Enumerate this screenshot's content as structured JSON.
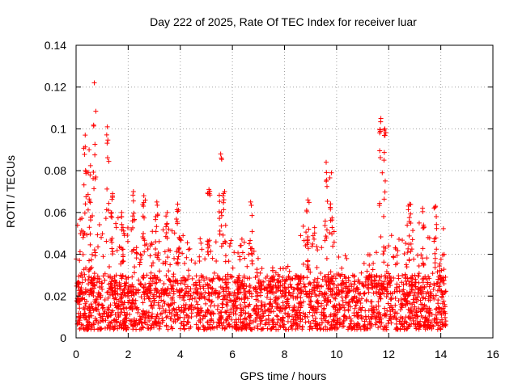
{
  "chart_data": {
    "type": "scatter",
    "title": "Day 222 of 2025, Rate Of TEC Index for receiver luar",
    "xlabel": "GPS time / hours",
    "ylabel": "ROTI / TECUs",
    "xlim": [
      0,
      16
    ],
    "ylim": [
      0,
      0.14
    ],
    "xticks": [
      0,
      2,
      4,
      6,
      8,
      10,
      12,
      14,
      16
    ],
    "yticks": [
      0,
      0.02,
      0.04,
      0.06,
      0.08,
      0.1,
      0.12,
      0.14
    ],
    "xtick_labels": [
      "0",
      "2",
      "4",
      "6",
      "8",
      "10",
      "12",
      "14",
      "16"
    ],
    "ytick_labels": [
      "0",
      "0.02",
      "0.04",
      "0.06",
      "0.08",
      "0.1",
      "0.12",
      "0.14"
    ],
    "grid": true,
    "marker": "+",
    "color": "#ff0000",
    "series": [
      {
        "name": "ROTI",
        "data_extent_x": [
          0,
          14.2
        ],
        "baseline_band": [
          0.004,
          0.03
        ],
        "notable_peaks": [
          {
            "x": 0.35,
            "y": 0.097
          },
          {
            "x": 0.5,
            "y": 0.09
          },
          {
            "x": 0.7,
            "y": 0.122
          },
          {
            "x": 1.2,
            "y": 0.101
          },
          {
            "x": 1.4,
            "y": 0.069
          },
          {
            "x": 1.75,
            "y": 0.06
          },
          {
            "x": 2.2,
            "y": 0.07
          },
          {
            "x": 2.6,
            "y": 0.068
          },
          {
            "x": 3.1,
            "y": 0.065
          },
          {
            "x": 3.5,
            "y": 0.06
          },
          {
            "x": 3.9,
            "y": 0.064
          },
          {
            "x": 5.1,
            "y": 0.071
          },
          {
            "x": 5.55,
            "y": 0.088
          },
          {
            "x": 5.7,
            "y": 0.07
          },
          {
            "x": 6.7,
            "y": 0.065
          },
          {
            "x": 8.9,
            "y": 0.066
          },
          {
            "x": 9.6,
            "y": 0.084
          },
          {
            "x": 9.8,
            "y": 0.079
          },
          {
            "x": 11.7,
            "y": 0.105
          },
          {
            "x": 11.85,
            "y": 0.1
          },
          {
            "x": 12.8,
            "y": 0.064
          },
          {
            "x": 13.3,
            "y": 0.062
          },
          {
            "x": 13.8,
            "y": 0.063
          }
        ],
        "active_windows": [
          {
            "from": 0.0,
            "to": 2.0,
            "peak": 0.06
          },
          {
            "from": 2.0,
            "to": 4.2,
            "peak": 0.055
          },
          {
            "from": 4.2,
            "to": 7.0,
            "peak": 0.05
          },
          {
            "from": 7.0,
            "to": 8.5,
            "peak": 0.035
          },
          {
            "from": 8.5,
            "to": 10.2,
            "peak": 0.055
          },
          {
            "from": 10.2,
            "to": 11.5,
            "peak": 0.04
          },
          {
            "from": 11.5,
            "to": 12.5,
            "peak": 0.05
          },
          {
            "from": 12.5,
            "to": 14.2,
            "peak": 0.055
          }
        ]
      }
    ]
  }
}
